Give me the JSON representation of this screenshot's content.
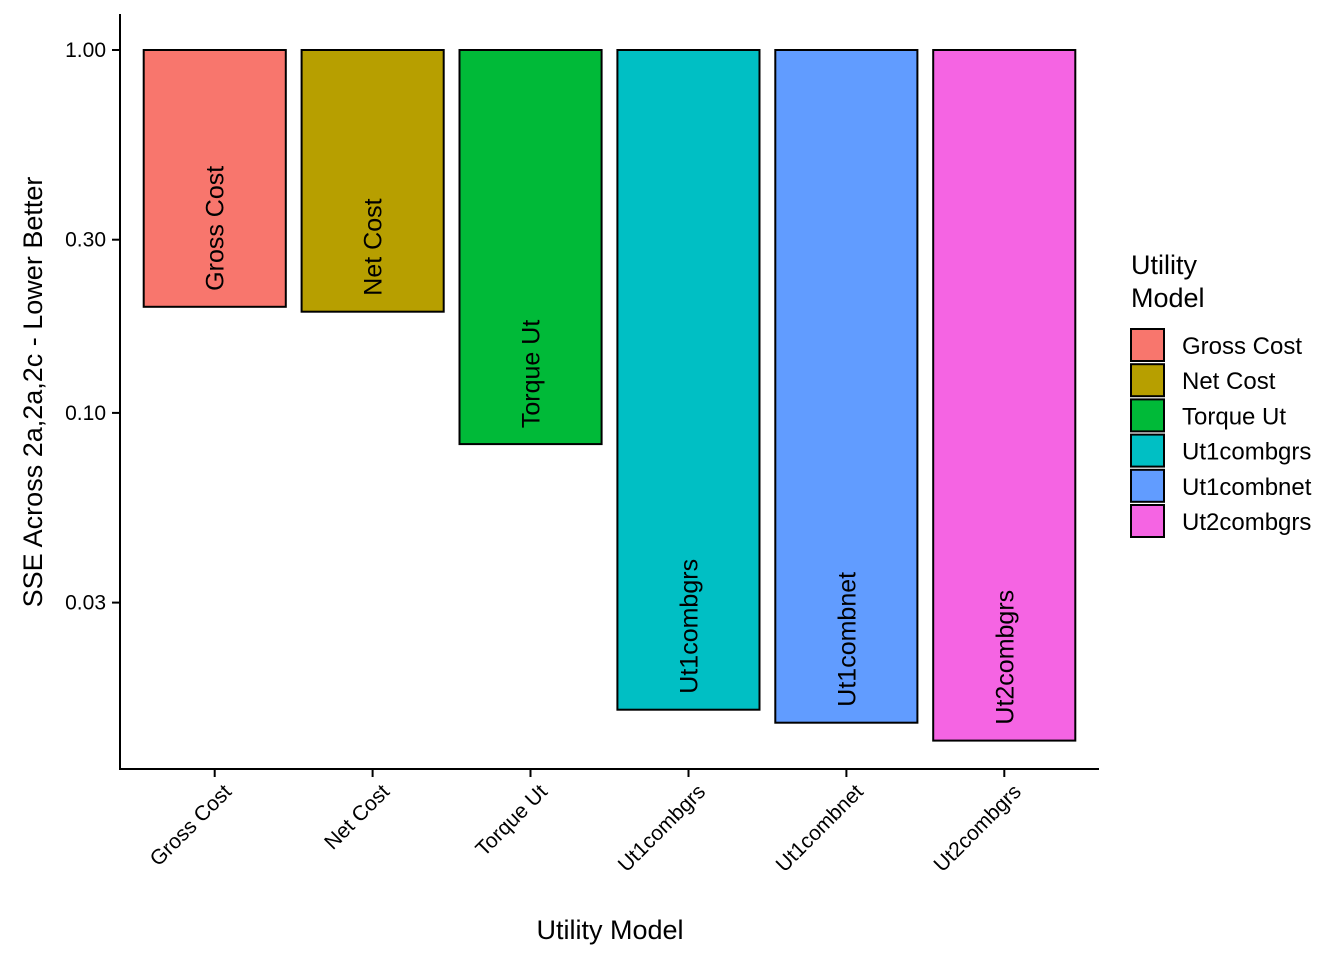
{
  "chart_data": {
    "type": "bar",
    "xlabel": "Utility Model",
    "ylabel": "SSE Across 2a,2a,2c - Lower Better",
    "y_scale": "log10",
    "ylim": [
      0.0105,
      1.32
    ],
    "y_ticks": [
      {
        "value": 1.0,
        "label": "1.00"
      },
      {
        "value": 0.3,
        "label": "0.30"
      },
      {
        "value": 0.1,
        "label": "0.10"
      },
      {
        "value": 0.03,
        "label": "0.03"
      }
    ],
    "bar_baseline": 1.0,
    "grid": false,
    "legend": {
      "title": [
        "Utility",
        "Model"
      ],
      "position": "right"
    },
    "categories": [
      "Gross Cost",
      "Net Cost",
      "Torque Ut",
      "Ut1combgrs",
      "Ut1combnet",
      "Ut2combgrs"
    ],
    "values": [
      0.196,
      0.19,
      0.082,
      0.0152,
      0.014,
      0.0125
    ],
    "colors": [
      "#F8766D",
      "#B79F00",
      "#00BA38",
      "#00BFC4",
      "#619CFF",
      "#F564E3"
    ]
  }
}
